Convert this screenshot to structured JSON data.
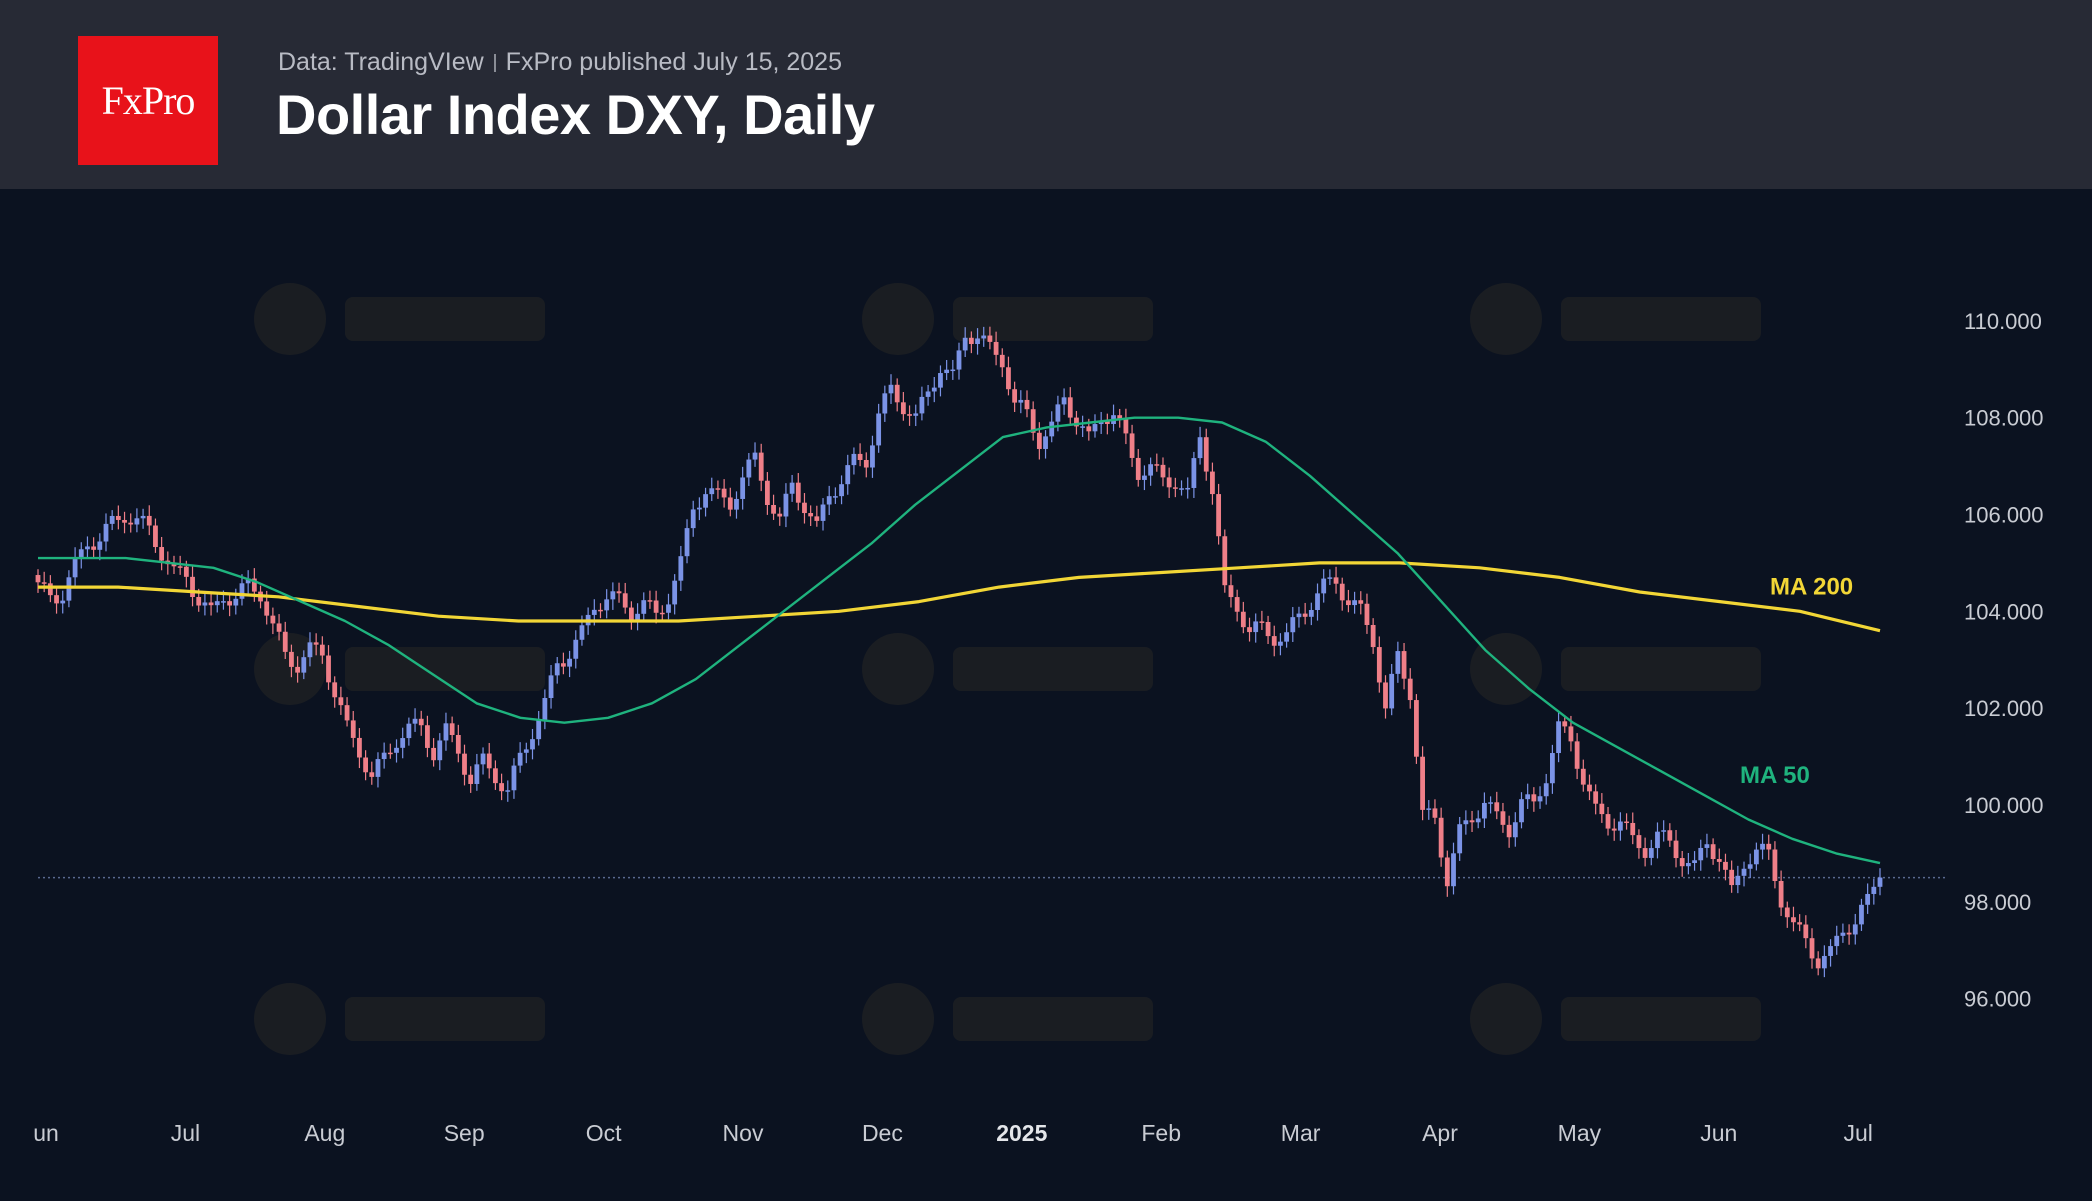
{
  "header": {
    "logo_text": "FxPro",
    "source": "Data: TradingVIew",
    "published": "FxPro published July 15, 2025",
    "title": "Dollar Index DXY, Daily"
  },
  "colors": {
    "up": "#7b93e6",
    "down": "#ef7f88",
    "ma50": "#1fb37e",
    "ma200": "#f2d636",
    "last_line": "#5a6a90",
    "axis_text": "#c9ccd3"
  },
  "chart_data": {
    "type": "candlestick",
    "title": "Dollar Index DXY, Daily",
    "ylim": [
      95.0,
      110.7
    ],
    "y_ticks": [
      "110.000",
      "108.000",
      "106.000",
      "104.000",
      "102.000",
      "100.000",
      "98.000",
      "96.000"
    ],
    "x_ticks": [
      "un",
      "Jul",
      "Aug",
      "Sep",
      "Oct",
      "Nov",
      "Dec",
      "2025",
      "Feb",
      "Mar",
      "Apr",
      "May",
      "Jun",
      "Jul"
    ],
    "last_price": 98.5,
    "grid": false,
    "legend": "none",
    "annotations": [
      {
        "text": "MA 200",
        "series": "ma200"
      },
      {
        "text": "MA 50",
        "series": "ma50"
      }
    ],
    "price_path": [
      104.6,
      104.2,
      104.4,
      105.0,
      105.3,
      105.6,
      105.8,
      105.9,
      106.0,
      105.6,
      105.2,
      104.9,
      104.6,
      104.3,
      104.0,
      104.2,
      104.4,
      104.5,
      104.3,
      103.8,
      103.0,
      102.9,
      103.3,
      103.0,
      102.4,
      101.6,
      101.0,
      100.7,
      100.9,
      101.3,
      101.7,
      101.5,
      101.1,
      101.6,
      101.0,
      100.6,
      100.9,
      100.5,
      100.4,
      100.9,
      101.5,
      102.2,
      102.8,
      103.2,
      103.6,
      104.0,
      104.4,
      104.2,
      103.9,
      104.3,
      103.8,
      104.3,
      105.1,
      106.0,
      106.6,
      106.4,
      106.1,
      106.9,
      107.1,
      106.3,
      106.0,
      106.5,
      106.2,
      105.8,
      106.3,
      106.8,
      107.1,
      107.0,
      108.2,
      108.5,
      108.2,
      108.1,
      108.4,
      109.1,
      108.9,
      109.6,
      109.8,
      109.4,
      109.1,
      108.4,
      108.0,
      107.5,
      107.9,
      108.3,
      108.0,
      107.6,
      107.9,
      108.2,
      107.5,
      106.8,
      107.1,
      106.6,
      106.7,
      106.5,
      107.5,
      106.6,
      104.4,
      104.0,
      103.7,
      103.6,
      103.4,
      103.6,
      103.8,
      104.2,
      104.6,
      104.5,
      104.3,
      104.0,
      103.3,
      102.1,
      103.0,
      102.3,
      99.9,
      99.6,
      98.5,
      99.5,
      99.6,
      100.2,
      99.7,
      99.4,
      100.2,
      99.9,
      100.6,
      101.7,
      101.2,
      100.6,
      99.9,
      99.5,
      99.8,
      99.2,
      99.0,
      99.5,
      99.1,
      98.9,
      98.8,
      99.1,
      99.0,
      98.2,
      98.7,
      99.2,
      98.9,
      98.0,
      97.6,
      97.1,
      96.8,
      97.0,
      97.3,
      97.7,
      98.0,
      98.5
    ],
    "series": [
      {
        "name": "MA 50",
        "values": [
          105.1,
          105.1,
          105.1,
          105.0,
          104.9,
          104.6,
          104.2,
          103.8,
          103.3,
          102.7,
          102.1,
          101.8,
          101.7,
          101.8,
          102.1,
          102.6,
          103.3,
          104.0,
          104.7,
          105.4,
          106.2,
          106.9,
          107.6,
          107.8,
          107.9,
          108.0,
          108.0,
          107.9,
          107.5,
          106.8,
          106.0,
          105.2,
          104.2,
          103.2,
          102.4,
          101.7,
          101.2,
          100.7,
          100.2,
          99.7,
          99.3,
          99.0,
          98.8
        ]
      },
      {
        "name": "MA 200",
        "values": [
          104.5,
          104.5,
          104.4,
          104.3,
          104.1,
          103.9,
          103.8,
          103.8,
          103.8,
          103.9,
          104.0,
          104.2,
          104.5,
          104.7,
          104.8,
          104.9,
          105.0,
          105.0,
          104.9,
          104.7,
          104.4,
          104.2,
          104.0,
          103.6
        ]
      }
    ]
  }
}
